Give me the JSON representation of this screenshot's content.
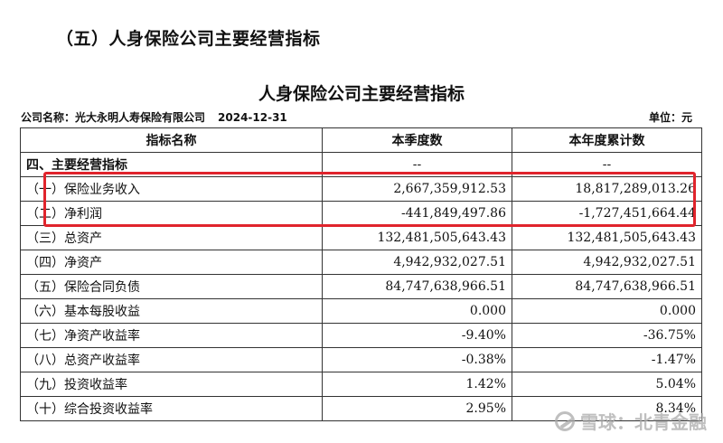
{
  "section_heading": "（五）人身保险公司主要经营指标",
  "table_title": "人身保险公司主要经营指标",
  "meta": {
    "company": "公司名称：光大永明人寿保险有限公司",
    "date": "2024-12-31",
    "unit": "单位：元"
  },
  "columns": [
    "指标名称",
    "本季度数",
    "本年度累计数"
  ],
  "rows": [
    {
      "name": "四、主要经营指标",
      "quarter": "--",
      "ytd": "--"
    },
    {
      "name": "（一）保险业务收入",
      "quarter": "2,667,359,912.53",
      "ytd": "18,817,289,013.26"
    },
    {
      "name": "（二）净利润",
      "quarter": "-441,849,497.86",
      "ytd": "-1,727,451,664.44"
    },
    {
      "name": "（三）总资产",
      "quarter": "132,481,505,643.43",
      "ytd": "132,481,505,643.43"
    },
    {
      "name": "（四）净资产",
      "quarter": "4,942,932,027.51",
      "ytd": "4,942,932,027.51"
    },
    {
      "name": "（五）保险合同负债",
      "quarter": "84,747,638,966.51",
      "ytd": "84,747,638,966.51"
    },
    {
      "name": "（六）基本每股收益",
      "quarter": "0.000",
      "ytd": "0.000"
    },
    {
      "name": "（七）净资产收益率",
      "quarter": "-9.40%",
      "ytd": "-36.75%"
    },
    {
      "name": "（八）总资产收益率",
      "quarter": "-0.38%",
      "ytd": "-1.47%"
    },
    {
      "name": "（九）投资收益率",
      "quarter": "1.42%",
      "ytd": "5.04%"
    },
    {
      "name": "（十）综合投资收益率",
      "quarter": "2.95%",
      "ytd": "8.34%"
    }
  ],
  "highlight_color": "#e0242c",
  "watermark": {
    "icon": "snowball-logo-icon",
    "text": "雪球：北青金融"
  }
}
